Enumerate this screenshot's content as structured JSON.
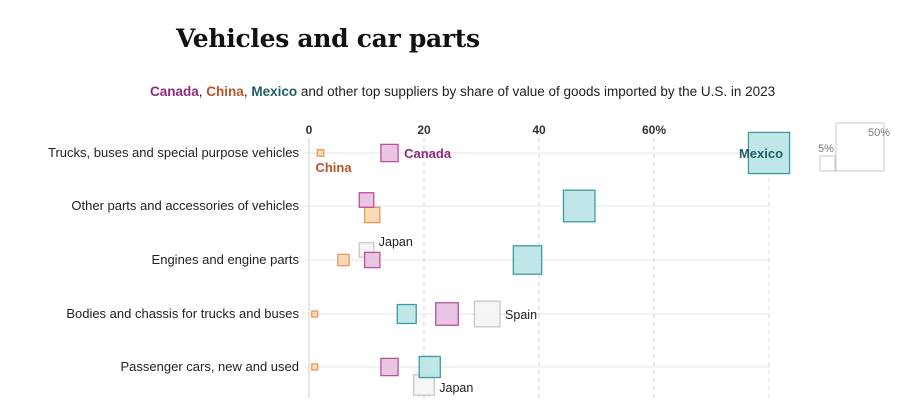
{
  "title": "Vehicles and car parts",
  "subtitle": {
    "canada": "Canada",
    "sep1": ", ",
    "china": "China",
    "sep2": ", ",
    "mexico": "Mexico",
    "rest": " and other top suppliers by share of value of goods imported by the U.S. in 2023"
  },
  "colors": {
    "canada_fill": "#e8bfe0",
    "canada_stroke": "#b4549f",
    "china_fill": "#fbd5b0",
    "china_stroke": "#e59a5c",
    "mexico_fill": "#b9e4e6",
    "mexico_stroke": "#3a9ca2",
    "other_fill": "#f4f4f4",
    "other_stroke": "#c8c8c8",
    "canada_text": "#8e2b7e",
    "china_text": "#b8542a",
    "mexico_text": "#1d5f67"
  },
  "chart_data": {
    "type": "scatter",
    "encoding": "x = share of import value (%); square area proportional to share",
    "xlim": [
      0,
      80
    ],
    "xticks": [
      {
        "value": 0,
        "label": "0"
      },
      {
        "value": 20,
        "label": "20"
      },
      {
        "value": 40,
        "label": "40"
      },
      {
        "value": 60,
        "label": "60%"
      }
    ],
    "size_legend": [
      {
        "value": 5,
        "label": "5%"
      },
      {
        "value": 50,
        "label": "50%"
      }
    ],
    "categories": [
      "Trucks, buses and special purpose vehicles",
      "Other parts and accessories of vehicles",
      "Engines and engine parts",
      "Bodies and chassis for trucks and buses",
      "Passenger cars, new and used"
    ],
    "series": [
      {
        "name": "Mexico",
        "role": "mexico",
        "values": [
          80,
          47,
          38,
          17,
          21
        ]
      },
      {
        "name": "Canada",
        "role": "canada",
        "values": [
          14,
          10,
          11,
          24,
          14
        ]
      },
      {
        "name": "China",
        "role": "china",
        "values": [
          2,
          11,
          6,
          1,
          1
        ]
      }
    ],
    "other_points": [
      {
        "category_index": 2,
        "label": "Japan",
        "value": 10
      },
      {
        "category_index": 3,
        "label": "Spain",
        "value": 31
      },
      {
        "category_index": 4,
        "label": "Japan",
        "value": 20
      }
    ],
    "annotations": [
      {
        "series": "Canada",
        "category_index": 0,
        "text": "Canada"
      },
      {
        "series": "China",
        "category_index": 0,
        "text": "China"
      },
      {
        "series": "Mexico",
        "category_index": 0,
        "text": "Mexico"
      }
    ]
  }
}
